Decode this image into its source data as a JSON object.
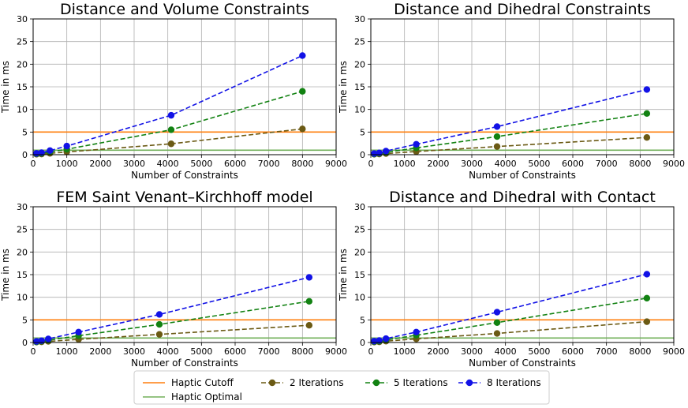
{
  "chart_data": [
    {
      "type": "line",
      "title": "Distance and Volume Constraints",
      "xlabel": "Number of Constraints",
      "ylabel": "Time in ms",
      "xlim": [
        0,
        9000
      ],
      "ylim": [
        0,
        30
      ],
      "xticks": [
        "0",
        "1000",
        "2000",
        "3000",
        "4000",
        "5000",
        "6000",
        "7000",
        "8000",
        "9000"
      ],
      "yticks": [
        "0",
        "5",
        "10",
        "15",
        "20",
        "25",
        "30"
      ],
      "grid": true,
      "hlines": [
        {
          "name": "Haptic Cutoff",
          "y": 5,
          "color": "#ff7f0e"
        },
        {
          "name": "Haptic Optimal",
          "y": 1,
          "color": "#72b05a"
        }
      ],
      "series": [
        {
          "name": "2 Iterations",
          "color": "#6b5a14",
          "x": [
            100,
            250,
            500,
            1000,
            4100,
            8000
          ],
          "y": [
            0.1,
            0.15,
            0.3,
            0.6,
            2.4,
            5.7
          ]
        },
        {
          "name": "5 Iterations",
          "color": "#128212",
          "x": [
            100,
            250,
            500,
            1000,
            4100,
            8000
          ],
          "y": [
            0.2,
            0.3,
            0.6,
            1.2,
            5.5,
            14.0
          ]
        },
        {
          "name": "8 Iterations",
          "color": "#1212e6",
          "x": [
            100,
            250,
            500,
            1000,
            4100,
            8000
          ],
          "y": [
            0.3,
            0.45,
            0.9,
            1.9,
            8.7,
            21.9
          ]
        }
      ]
    },
    {
      "type": "line",
      "title": "Distance and Dihedral Constraints",
      "xlabel": "Number of Constraints",
      "ylabel": "Time in ms",
      "xlim": [
        0,
        9000
      ],
      "ylim": [
        0,
        30
      ],
      "xticks": [
        "0",
        "1000",
        "2000",
        "3000",
        "4000",
        "5000",
        "6000",
        "7000",
        "8000",
        "9000"
      ],
      "yticks": [
        "0",
        "5",
        "10",
        "15",
        "20",
        "25",
        "30"
      ],
      "grid": true,
      "hlines": [
        {
          "name": "Haptic Cutoff",
          "y": 5,
          "color": "#ff7f0e"
        },
        {
          "name": "Haptic Optimal",
          "y": 1,
          "color": "#72b05a"
        }
      ],
      "series": [
        {
          "name": "2 Iterations",
          "color": "#6b5a14",
          "x": [
            100,
            250,
            450,
            1350,
            3750,
            8200
          ],
          "y": [
            0.1,
            0.15,
            0.25,
            0.7,
            1.8,
            3.8
          ]
        },
        {
          "name": "5 Iterations",
          "color": "#128212",
          "x": [
            100,
            250,
            450,
            1350,
            3750,
            8200
          ],
          "y": [
            0.15,
            0.3,
            0.5,
            1.5,
            4.0,
            9.1
          ]
        },
        {
          "name": "8 Iterations",
          "color": "#1212e6",
          "x": [
            100,
            250,
            450,
            1350,
            3750,
            8200
          ],
          "y": [
            0.25,
            0.4,
            0.8,
            2.3,
            6.2,
            14.4
          ]
        }
      ]
    },
    {
      "type": "line",
      "title": "FEM Saint Venant–Kirchhoff model",
      "xlabel": "Number of Constraints",
      "ylabel": "Time in ms",
      "xlim": [
        0,
        9000
      ],
      "ylim": [
        0,
        30
      ],
      "xticks": [
        "0",
        "1000",
        "2000",
        "3000",
        "4000",
        "5000",
        "6000",
        "7000",
        "8000",
        "9000"
      ],
      "yticks": [
        "0",
        "5",
        "10",
        "15",
        "20",
        "25",
        "30"
      ],
      "grid": true,
      "hlines": [
        {
          "name": "Haptic Cutoff",
          "y": 5,
          "color": "#ff7f0e"
        },
        {
          "name": "Haptic Optimal",
          "y": 1,
          "color": "#72b05a"
        }
      ],
      "series": [
        {
          "name": "2 Iterations",
          "color": "#6b5a14",
          "x": [
            100,
            250,
            450,
            1350,
            3750,
            8200
          ],
          "y": [
            0.1,
            0.15,
            0.25,
            0.7,
            1.8,
            3.8
          ]
        },
        {
          "name": "5 Iterations",
          "color": "#128212",
          "x": [
            100,
            250,
            450,
            1350,
            3750,
            8200
          ],
          "y": [
            0.15,
            0.3,
            0.5,
            1.5,
            4.0,
            9.1
          ]
        },
        {
          "name": "8 Iterations",
          "color": "#1212e6",
          "x": [
            100,
            250,
            450,
            1350,
            3750,
            8200
          ],
          "y": [
            0.25,
            0.4,
            0.8,
            2.3,
            6.2,
            14.4
          ]
        }
      ]
    },
    {
      "type": "line",
      "title": "Distance and Dihedral with Contact",
      "xlabel": "Number of Constraints",
      "ylabel": "Time in ms",
      "xlim": [
        0,
        9000
      ],
      "ylim": [
        0,
        30
      ],
      "xticks": [
        "0",
        "1000",
        "2000",
        "3000",
        "4000",
        "5000",
        "6000",
        "7000",
        "8000",
        "9000"
      ],
      "yticks": [
        "0",
        "5",
        "10",
        "15",
        "20",
        "25",
        "30"
      ],
      "grid": true,
      "hlines": [
        {
          "name": "Haptic Cutoff",
          "y": 5,
          "color": "#ff7f0e"
        },
        {
          "name": "Haptic Optimal",
          "y": 1,
          "color": "#72b05a"
        }
      ],
      "series": [
        {
          "name": "2 Iterations",
          "color": "#6b5a14",
          "x": [
            100,
            250,
            450,
            1350,
            3750,
            8200
          ],
          "y": [
            0.1,
            0.15,
            0.3,
            0.8,
            2.0,
            4.6
          ]
        },
        {
          "name": "5 Iterations",
          "color": "#128212",
          "x": [
            100,
            250,
            450,
            1350,
            3750,
            8200
          ],
          "y": [
            0.2,
            0.3,
            0.55,
            1.6,
            4.4,
            9.8
          ]
        },
        {
          "name": "8 Iterations",
          "color": "#1212e6",
          "x": [
            100,
            250,
            450,
            1350,
            3750,
            8200
          ],
          "y": [
            0.3,
            0.45,
            0.85,
            2.3,
            6.7,
            15.1
          ]
        }
      ]
    }
  ],
  "legend": {
    "placement": "bottom-center",
    "items": [
      {
        "label": "Haptic Cutoff",
        "color": "#ff7f0e",
        "style": "solid"
      },
      {
        "label": "Haptic Optimal",
        "color": "#72b05a",
        "style": "solid"
      },
      {
        "label": "2 Iterations",
        "color": "#6b5a14",
        "style": "dashed-marker"
      },
      {
        "label": "5 Iterations",
        "color": "#128212",
        "style": "dashed-marker"
      },
      {
        "label": "8 Iterations",
        "color": "#1212e6",
        "style": "dashed-marker"
      }
    ]
  }
}
